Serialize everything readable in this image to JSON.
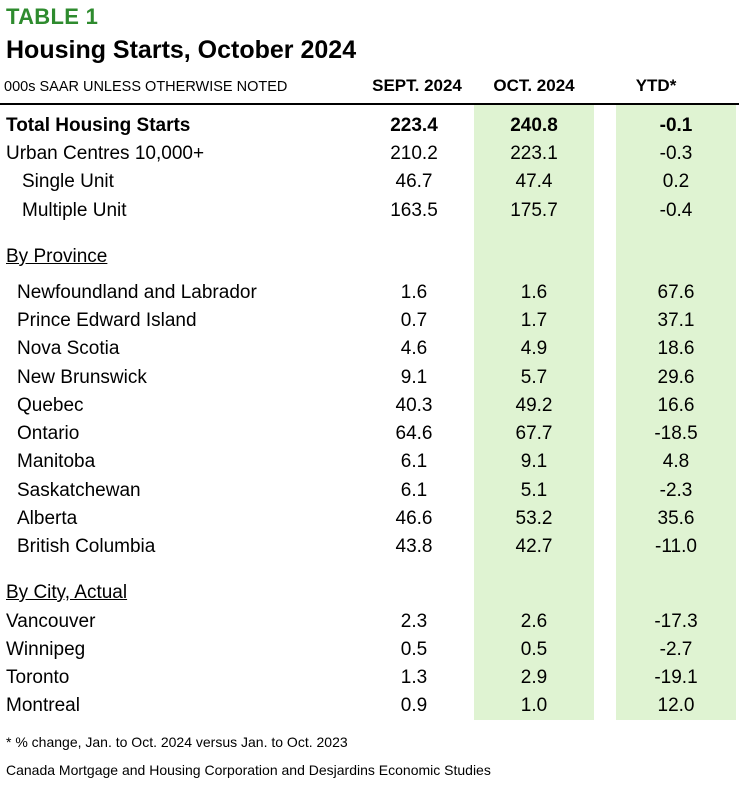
{
  "header": {
    "table_label": "TABLE 1",
    "title": "Housing Starts, October 2024",
    "units": "000s SAAR UNLESS OTHERWISE NOTED",
    "columns": [
      "SEPT. 2024",
      "OCT. 2024",
      "YTD*"
    ]
  },
  "colors": {
    "label_green": "#2e8b2e",
    "highlight_band": "#dff3d2"
  },
  "summary_rows": [
    {
      "label": "Total Housing Starts",
      "sept": "223.4",
      "oct": "240.8",
      "ytd": "-0.1"
    },
    {
      "label": "Urban Centres 10,000+",
      "sept": "210.2",
      "oct": "223.1",
      "ytd": "-0.3"
    },
    {
      "label": "Single Unit",
      "sept": "46.7",
      "oct": "47.4",
      "ytd": "0.2"
    },
    {
      "label": "Multiple Unit",
      "sept": "163.5",
      "oct": "175.7",
      "ytd": "-0.4"
    }
  ],
  "province_section": {
    "heading": "By Province",
    "rows": [
      {
        "label": "Newfoundland and Labrador",
        "sept": "1.6",
        "oct": "1.6",
        "ytd": "67.6"
      },
      {
        "label": "Prince Edward Island",
        "sept": "0.7",
        "oct": "1.7",
        "ytd": "37.1"
      },
      {
        "label": "Nova Scotia",
        "sept": "4.6",
        "oct": "4.9",
        "ytd": "18.6"
      },
      {
        "label": "New Brunswick",
        "sept": "9.1",
        "oct": "5.7",
        "ytd": "29.6"
      },
      {
        "label": "Quebec",
        "sept": "40.3",
        "oct": "49.2",
        "ytd": "16.6"
      },
      {
        "label": "Ontario",
        "sept": "64.6",
        "oct": "67.7",
        "ytd": "-18.5"
      },
      {
        "label": "Manitoba",
        "sept": "6.1",
        "oct": "9.1",
        "ytd": "4.8"
      },
      {
        "label": "Saskatchewan",
        "sept": "6.1",
        "oct": "5.1",
        "ytd": "-2.3"
      },
      {
        "label": "Alberta",
        "sept": "46.6",
        "oct": "53.2",
        "ytd": "35.6"
      },
      {
        "label": "British Columbia",
        "sept": "43.8",
        "oct": "42.7",
        "ytd": "-11.0"
      }
    ]
  },
  "city_section": {
    "heading": "By City, Actual",
    "rows": [
      {
        "label": "Vancouver",
        "sept": "2.3",
        "oct": "2.6",
        "ytd": "-17.3"
      },
      {
        "label": "Winnipeg",
        "sept": "0.5",
        "oct": "0.5",
        "ytd": "-2.7"
      },
      {
        "label": "Toronto",
        "sept": "1.3",
        "oct": "2.9",
        "ytd": "-19.1"
      },
      {
        "label": "Montreal",
        "sept": "0.9",
        "oct": "1.0",
        "ytd": "12.0"
      }
    ]
  },
  "footer": {
    "footnote": "* % change, Jan. to Oct. 2024 versus Jan. to Oct. 2023",
    "source": "Canada Mortgage and Housing Corporation and Desjardins Economic Studies"
  }
}
